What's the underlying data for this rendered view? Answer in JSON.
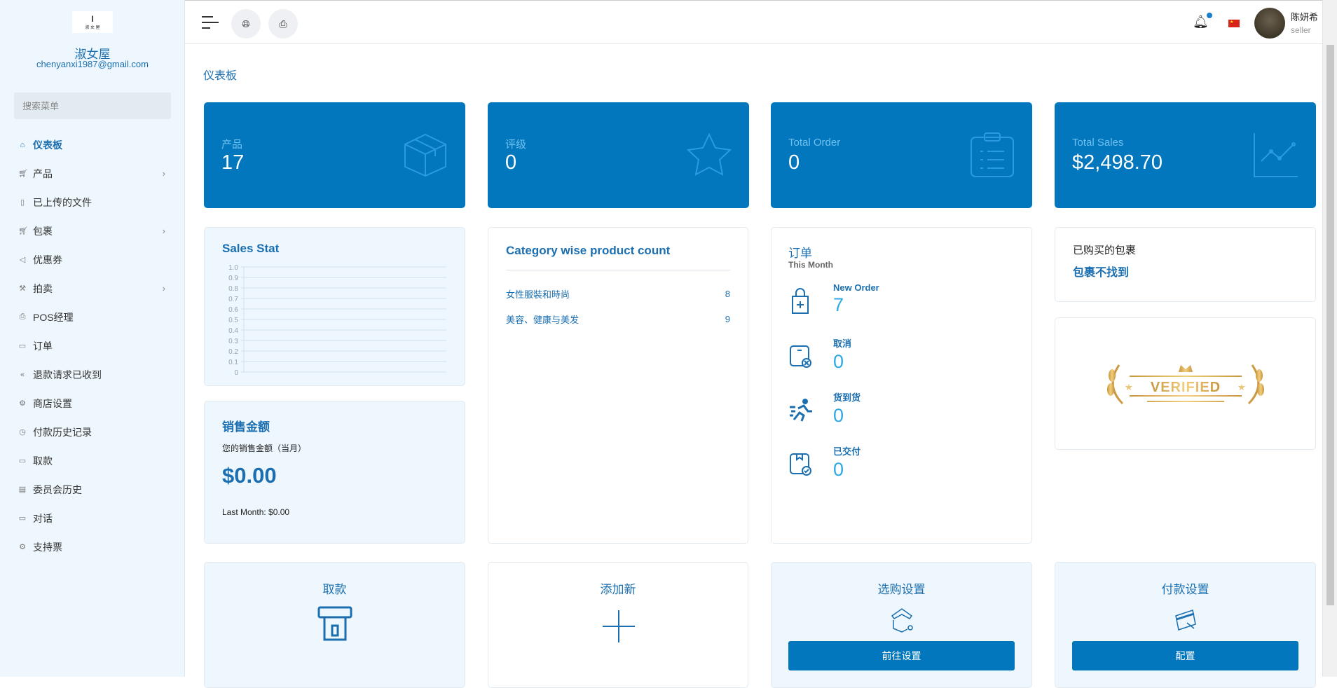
{
  "sidebar": {
    "logo_text": "淑女屋",
    "shop_name": "淑女屋",
    "email": "chenyanxi1987@gmail.com",
    "search_placeholder": "搜索菜单",
    "items": [
      {
        "label": "仪表板",
        "icon": "home-icon",
        "active": true
      },
      {
        "label": "产品",
        "icon": "cart-icon",
        "has_children": true
      },
      {
        "label": "已上传的文件",
        "icon": "folder-icon"
      },
      {
        "label": "包裹",
        "icon": "cart-icon",
        "has_children": true
      },
      {
        "label": "优惠券",
        "icon": "megaphone-icon"
      },
      {
        "label": "拍卖",
        "icon": "gavel-icon",
        "has_children": true
      },
      {
        "label": "POS经理",
        "icon": "printer-icon"
      },
      {
        "label": "订单",
        "icon": "ticket-icon"
      },
      {
        "label": "退款请求已收到",
        "icon": "rewind-icon"
      },
      {
        "label": "商店设置",
        "icon": "gear-icon"
      },
      {
        "label": "付款历史记录",
        "icon": "history-icon"
      },
      {
        "label": "取款",
        "icon": "money-icon"
      },
      {
        "label": "委员会历史",
        "icon": "document-icon"
      },
      {
        "label": "对话",
        "icon": "chat-icon"
      },
      {
        "label": "支持票",
        "icon": "support-icon"
      }
    ]
  },
  "header": {
    "user_name": "陈妍希",
    "user_role": "seller",
    "notification_dot": true,
    "language_flag": "CN"
  },
  "page_title": "仪表板",
  "stats": [
    {
      "label": "产品",
      "value": "17",
      "icon": "box-icon"
    },
    {
      "label": "评级",
      "value": "0",
      "icon": "star-icon"
    },
    {
      "label": "Total Order",
      "value": "0",
      "icon": "clipboard-icon"
    },
    {
      "label": "Total Sales",
      "value": "$2,498.70",
      "icon": "line-chart-icon"
    }
  ],
  "sales_stat": {
    "title": "Sales Stat"
  },
  "chart_data": {
    "type": "line",
    "title": "Sales Stat",
    "series": [],
    "ylim": [
      0,
      1.0
    ],
    "yticks": [
      "0",
      "0.1",
      "0.2",
      "0.3",
      "0.4",
      "0.5",
      "0.6",
      "0.7",
      "0.8",
      "0.9",
      "1.0"
    ],
    "grid": true
  },
  "sales_amount": {
    "title": "销售金额",
    "subtitle": "您的销售金额（当月）",
    "value": "$0.00",
    "last_month": "Last Month: $0.00"
  },
  "category": {
    "title": "Category wise product count",
    "rows": [
      {
        "name": "女性服裝和時尚",
        "count": "8"
      },
      {
        "name": "美容、健康与美发",
        "count": "9"
      }
    ]
  },
  "orders": {
    "title": "订单",
    "subtitle": "This Month",
    "items": [
      {
        "label": "New Order",
        "value": "7",
        "icon": "shopping-bag-plus-icon"
      },
      {
        "label": "取消",
        "value": "0",
        "icon": "box-cancel-icon"
      },
      {
        "label": "货到货",
        "value": "0",
        "icon": "running-icon"
      },
      {
        "label": "已交付",
        "value": "0",
        "icon": "box-check-icon"
      }
    ]
  },
  "package": {
    "title": "已购买的包裹",
    "status": "包裹不找到"
  },
  "verified": {
    "badge_text": "VERIFIED"
  },
  "tiles": [
    {
      "title": "取款",
      "icon": "withdraw-icon"
    },
    {
      "title": "添加新",
      "icon": "plus-icon"
    },
    {
      "title": "选购设置",
      "icon": "shop-settings-icon",
      "button": "前往设置"
    },
    {
      "title": "付款设置",
      "icon": "card-settings-icon",
      "button": "配置"
    }
  ],
  "colors": {
    "primary": "#0277bd",
    "accent_text": "#1b6fb0",
    "light_bg": "#eef7fd",
    "order_value": "#2fa9e6"
  }
}
